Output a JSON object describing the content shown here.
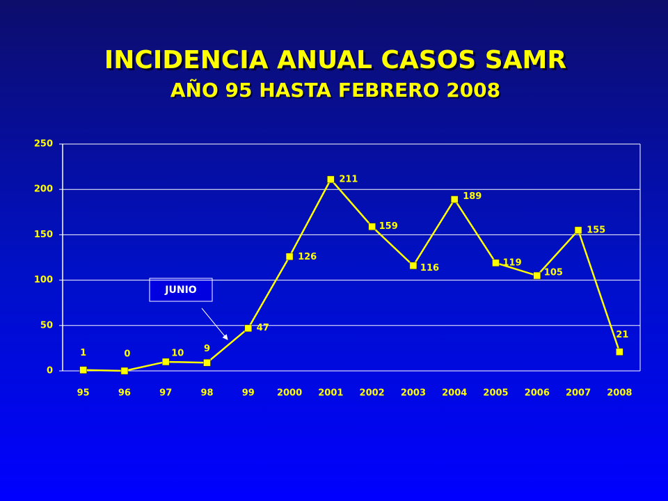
{
  "chart_data": {
    "type": "line",
    "title": "INCIDENCIA ANUAL CASOS SAMR",
    "subtitle": "AÑO 95 HASTA FEBRERO 2008",
    "categories": [
      "95",
      "96",
      "97",
      "98",
      "99",
      "2000",
      "2001",
      "2002",
      "2003",
      "2004",
      "2005",
      "2006",
      "2007",
      "2008"
    ],
    "values": [
      1,
      0,
      10,
      9,
      47,
      126,
      211,
      159,
      116,
      189,
      119,
      105,
      155,
      21
    ],
    "color": "#ffff00",
    "ylim": [
      0,
      250
    ],
    "yticks": [
      0,
      50,
      100,
      150,
      200,
      250
    ],
    "grid": true,
    "annotation": "JUNIO"
  }
}
